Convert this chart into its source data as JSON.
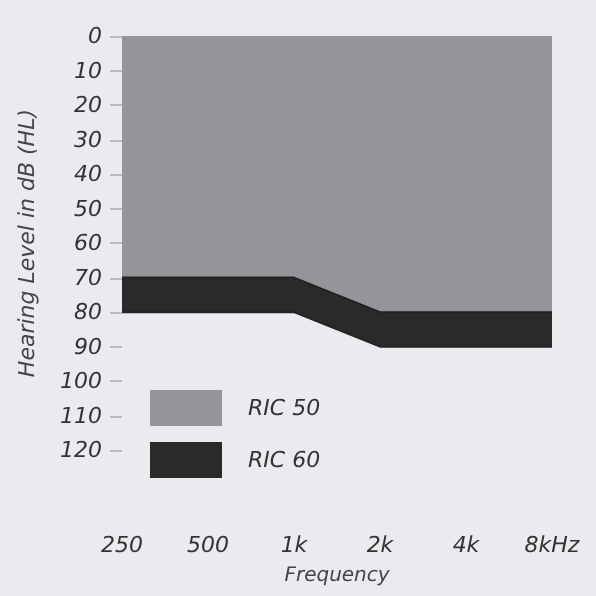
{
  "chart_data": {
    "type": "area",
    "stacked": true,
    "xlabel": "Frequency",
    "ylabel": "Hearing Level in dB (HL)",
    "categories": [
      "250",
      "500",
      "1k",
      "2k",
      "4k",
      "8kHz"
    ],
    "series": [
      {
        "name": "RIC 50",
        "color": "#949598",
        "values": [
          70,
          70,
          70,
          80,
          80,
          80
        ]
      },
      {
        "name": "RIC 60",
        "color": "#2a2a2a",
        "values": [
          10,
          10,
          10,
          10,
          10,
          10
        ]
      }
    ],
    "ylim": [
      120,
      0
    ],
    "yticks": [
      0,
      10,
      20,
      30,
      40,
      50,
      60,
      70,
      80,
      90,
      100,
      110,
      120
    ],
    "grid": false,
    "legend": "bottom left"
  }
}
